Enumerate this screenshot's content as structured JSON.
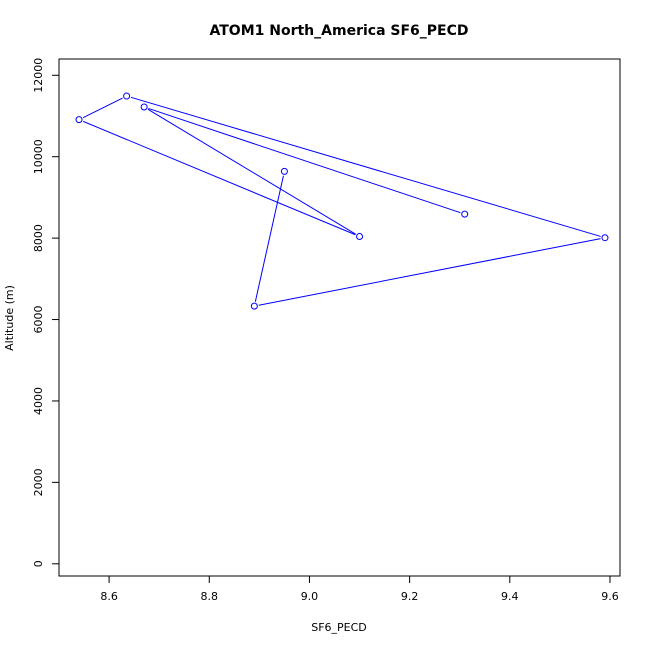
{
  "chart_data": {
    "type": "line",
    "title": "ATOM1 North_America SF6_PECD",
    "xlabel": "SF6_PECD",
    "ylabel": "Altitude (m)",
    "xlim": [
      8.5,
      9.62
    ],
    "ylim": [
      -300,
      12400
    ],
    "x_ticks": [
      8.6,
      8.8,
      9.0,
      9.2,
      9.4,
      9.6
    ],
    "x_tick_labels": [
      "8.6",
      "8.8",
      "9.0",
      "9.2",
      "9.4",
      "9.6"
    ],
    "y_ticks": [
      0,
      2000,
      4000,
      6000,
      8000,
      10000,
      12000
    ],
    "y_tick_labels": [
      "0",
      "2000",
      "4000",
      "6000",
      "8000",
      "10000",
      "12000"
    ],
    "grid": false,
    "series": [
      {
        "color": "#0000ff",
        "marker": "open-circle",
        "points": [
          {
            "x": 9.31,
            "y": 8590
          },
          {
            "x": 8.67,
            "y": 11220
          },
          {
            "x": 9.1,
            "y": 8040
          },
          {
            "x": 8.54,
            "y": 10910
          },
          {
            "x": 8.635,
            "y": 11490
          },
          {
            "x": 9.59,
            "y": 8010
          },
          {
            "x": 8.89,
            "y": 6330
          },
          {
            "x": 8.95,
            "y": 9640
          }
        ]
      }
    ]
  }
}
